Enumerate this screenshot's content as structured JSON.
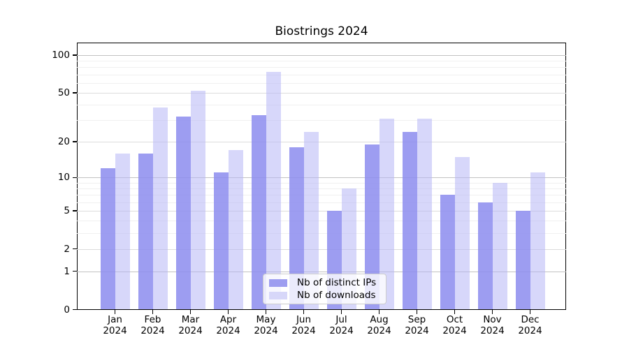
{
  "chart_data": {
    "type": "bar",
    "title": "Biostrings 2024",
    "categories": [
      "Jan 2024",
      "Feb 2024",
      "Mar 2024",
      "Apr 2024",
      "May 2024",
      "Jun 2024",
      "Jul 2024",
      "Aug 2024",
      "Sep 2024",
      "Oct 2024",
      "Nov 2024",
      "Dec 2024"
    ],
    "series": [
      {
        "name": "Nb of distinct IPs",
        "key": "distinct-ips",
        "color": "rgba(140,140,238,0.85)",
        "legend_color": "#9d9df0",
        "values": [
          12,
          16,
          32,
          11,
          33,
          18,
          5,
          19,
          24,
          7,
          6,
          5
        ]
      },
      {
        "name": "Nb of downloads",
        "key": "downloads",
        "color": "rgba(183,183,245,0.55)",
        "legend_color": "#d7d7f9",
        "values": [
          16,
          38,
          52,
          17,
          74,
          24,
          8,
          31,
          31,
          15,
          9,
          11
        ]
      }
    ],
    "xlabel": "",
    "ylabel": "",
    "yscale": "log1p",
    "ylim": [
      0,
      125
    ],
    "y_ticks": [
      0,
      1,
      2,
      5,
      10,
      20,
      50,
      100
    ],
    "y_strong_gridlines": [
      1,
      10,
      100
    ],
    "y_minor_gridlines": [
      3,
      4,
      6,
      7,
      8,
      9,
      30,
      40,
      60,
      70,
      80,
      90
    ],
    "grid": "horizontal",
    "legend_position": "bottom-center-inside"
  }
}
